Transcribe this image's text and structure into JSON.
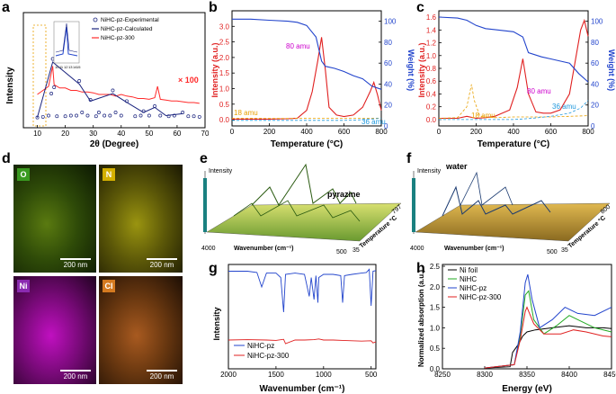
{
  "panel_labels": {
    "a": "a",
    "b": "b",
    "c": "c",
    "d": "d",
    "e": "e",
    "f": "f",
    "g": "g",
    "h": "h"
  },
  "colors": {
    "experimental": "#ff2a2a",
    "calculated": "#1a237e",
    "nihc_pz": "#2244cc",
    "nihc_pz_300": "#e02020",
    "intensity_axis": "#e02020",
    "weight_axis": "#2244cc",
    "amu80": "#cc00cc",
    "amu18": "#e8a000",
    "amu36": "#2299dd",
    "ni_foil": "#000000",
    "nihc": "#22aa22"
  },
  "panel_a": {
    "xlabel": "2θ (Degree)",
    "ylabel": "Intensity",
    "legend": [
      "NiHC-pz-Experimental",
      "NiHC-pz-Calculated",
      "NiHC-pz-300"
    ],
    "annotation": "× 100",
    "inset_ticks": [
      "10",
      "11",
      "12",
      "13",
      "14",
      "15"
    ]
  },
  "panel_b": {
    "xlabel": "Temperature (°C)",
    "ylabel_left": "Intensity (a.u.)",
    "ylabel_right": "Weight (%)",
    "amu80": "80 amu",
    "amu18": "18 amu",
    "amu36": "36 amu"
  },
  "panel_c": {
    "xlabel": "Temperature (°C)",
    "ylabel_left": "Intensity (a.u.)",
    "ylabel_right": "Weight (%)",
    "amu80": "80 amu",
    "amu18": "18 amu",
    "amu36": "36 amu"
  },
  "panel_d": {
    "maps": [
      {
        "element": "O",
        "scale": "200 nm"
      },
      {
        "element": "N",
        "scale": "200 nm"
      },
      {
        "element": "Ni",
        "scale": "200 nm"
      },
      {
        "element": "Cl",
        "scale": "200 nm"
      }
    ]
  },
  "panel_e": {
    "zlabel": "Intensity",
    "annotation": "pyrazine",
    "xlabel": "Wavenumber (cm⁻¹)",
    "x_left": "4000",
    "x_right": "500",
    "ylabel": "Temperature °C",
    "y_start": "35",
    "y_end": "797"
  },
  "panel_f": {
    "zlabel": "Intensity",
    "annotation": "water",
    "xlabel": "Wavenumber (cm⁻¹)",
    "x_left": "4000",
    "x_right": "500",
    "ylabel": "Temperature °C",
    "y_start": "35",
    "y_end": "800"
  },
  "panel_g": {
    "xlabel": "Wavenumber (cm⁻¹)",
    "ylabel": "Intensity",
    "legend": [
      "NiHC-pz",
      "NiHC-pz-300"
    ]
  },
  "panel_h": {
    "xlabel": "Energy (eV)",
    "ylabel": "Normalized absorption (a.u.)",
    "legend": [
      "Ni foil",
      "NiHC",
      "NiHC-pz",
      "NiHC-pz-300"
    ]
  },
  "chart_data": [
    {
      "type": "line",
      "panel": "a",
      "xlabel": "2θ (Degree)",
      "ylabel": "Intensity",
      "xlim": [
        5,
        70
      ],
      "xticks": [
        10,
        20,
        30,
        40,
        50,
        60,
        70
      ],
      "series": [
        {
          "name": "NiHC-pz-Experimental",
          "x": [
            10,
            12,
            14,
            15,
            15.5,
            16,
            17,
            20,
            22,
            24,
            25,
            26,
            28,
            29,
            31,
            32,
            34,
            36,
            37,
            38,
            40,
            42,
            45,
            47,
            48,
            50,
            52,
            54,
            57,
            59,
            62,
            64,
            66,
            68
          ],
          "y": [
            0.02,
            0.03,
            0.05,
            0.4,
            0.95,
            0.5,
            0.04,
            0.04,
            0.05,
            0.05,
            0.6,
            0.1,
            0.05,
            0.3,
            0.04,
            0.1,
            0.05,
            0.05,
            0.45,
            0.1,
            0.05,
            0.28,
            0.04,
            0.05,
            0.12,
            0.05,
            0.2,
            0.05,
            0.04,
            0.05,
            0.1,
            0.04,
            0.04,
            0.03
          ]
        },
        {
          "name": "NiHC-pz-Calculated",
          "x": [
            10,
            15.5,
            25,
            29,
            37,
            42,
            48,
            52,
            56,
            62
          ],
          "y": [
            0.02,
            0.9,
            0.55,
            0.28,
            0.4,
            0.26,
            0.1,
            0.18,
            0.05,
            0.08
          ]
        },
        {
          "name": "NiHC-pz-300",
          "x": [
            10,
            12,
            14,
            15.5,
            16,
            18,
            20,
            22,
            24,
            26,
            28,
            30,
            32,
            34,
            36,
            38,
            40,
            42,
            44,
            46,
            48,
            50,
            52,
            53,
            54,
            56,
            58,
            60,
            62,
            64,
            66,
            68
          ],
          "y": [
            0.5,
            0.55,
            0.6,
            0.85,
            0.62,
            0.58,
            0.58,
            0.55,
            0.55,
            0.53,
            0.53,
            0.52,
            0.5,
            0.5,
            0.5,
            0.48,
            0.5,
            0.48,
            0.47,
            0.45,
            0.45,
            0.44,
            0.46,
            0.6,
            0.44,
            0.43,
            0.42,
            0.42,
            0.41,
            0.4,
            0.4,
            0.39
          ]
        }
      ]
    },
    {
      "type": "line",
      "panel": "b",
      "xlabel": "Temperature (°C)",
      "ylabel": "Intensity (a.u.)",
      "y2label": "Weight (%)",
      "xlim": [
        0,
        800
      ],
      "ylim": [
        -0.2,
        3.5
      ],
      "y2lim": [
        0,
        110
      ],
      "xticks": [
        0,
        200,
        400,
        600,
        800
      ],
      "yticks": [
        0.0,
        0.5,
        1.0,
        1.5,
        2.0,
        2.5,
        3.0
      ],
      "y2ticks": [
        0,
        20,
        40,
        60,
        80,
        100
      ],
      "series": [
        {
          "name": "80 amu",
          "x": [
            0,
            100,
            200,
            300,
            350,
            400,
            430,
            460,
            480,
            500,
            520,
            560,
            600,
            650,
            700,
            740,
            760,
            780,
            800
          ],
          "y": [
            0.02,
            0.02,
            0.02,
            0.03,
            0.05,
            0.3,
            0.9,
            1.9,
            2.65,
            1.6,
            0.4,
            0.15,
            0.1,
            0.15,
            0.4,
            0.9,
            1.2,
            0.8,
            0.3
          ]
        },
        {
          "name": "18 amu",
          "x": [
            0,
            100,
            200,
            300,
            400,
            500,
            600,
            700,
            800
          ],
          "y": [
            0.05,
            0.05,
            0.04,
            0.04,
            0.05,
            0.05,
            0.05,
            0.05,
            0.05
          ]
        },
        {
          "name": "36 amu",
          "x": [
            0,
            100,
            200,
            300,
            400,
            500,
            600,
            700,
            800
          ],
          "y": [
            -0.02,
            -0.02,
            -0.02,
            -0.02,
            -0.02,
            -0.02,
            -0.02,
            0.0,
            0.05
          ]
        },
        {
          "name": "Weight",
          "x": [
            0,
            100,
            200,
            300,
            350,
            400,
            450,
            480,
            500,
            550,
            600,
            650,
            700,
            750,
            800
          ],
          "y": [
            102,
            102,
            101,
            100,
            99,
            96,
            85,
            62,
            57,
            55,
            52,
            48,
            45,
            38,
            35
          ]
        }
      ]
    },
    {
      "type": "line",
      "panel": "c",
      "xlabel": "Temperature (°C)",
      "ylabel": "Intensity (a.u.)",
      "y2label": "Weight (%)",
      "xlim": [
        0,
        800
      ],
      "ylim": [
        -0.1,
        1.7
      ],
      "y2lim": [
        0,
        110
      ],
      "xticks": [
        0,
        200,
        400,
        600,
        800
      ],
      "yticks": [
        0.0,
        0.2,
        0.4,
        0.6,
        0.8,
        1.0,
        1.2,
        1.4,
        1.6
      ],
      "y2ticks": [
        0,
        20,
        40,
        60,
        80,
        100
      ],
      "series": [
        {
          "name": "80 amu",
          "x": [
            0,
            100,
            150,
            200,
            250,
            300,
            380,
            420,
            450,
            480,
            520,
            560,
            600,
            650,
            700,
            730,
            760,
            780,
            800
          ],
          "y": [
            0.02,
            0.02,
            0.05,
            0.02,
            0.03,
            0.05,
            0.15,
            0.5,
            0.95,
            0.4,
            0.12,
            0.1,
            0.1,
            0.15,
            0.4,
            0.9,
            1.4,
            1.55,
            1.3
          ]
        },
        {
          "name": "18 amu",
          "x": [
            0,
            100,
            150,
            175,
            190,
            220,
            300,
            400,
            500,
            600,
            700,
            800
          ],
          "y": [
            0.02,
            0.03,
            0.2,
            0.55,
            0.3,
            0.05,
            0.03,
            0.04,
            0.04,
            0.04,
            0.05,
            0.06
          ]
        },
        {
          "name": "36 amu",
          "x": [
            0,
            200,
            400,
            500,
            600,
            700,
            760,
            800
          ],
          "y": [
            0.0,
            0.0,
            0.0,
            0.02,
            0.05,
            0.1,
            0.18,
            0.3
          ]
        },
        {
          "name": "Weight",
          "x": [
            0,
            100,
            150,
            200,
            250,
            300,
            400,
            450,
            480,
            550,
            600,
            650,
            700,
            750,
            800
          ],
          "y": [
            104,
            103,
            101,
            96,
            93,
            92,
            90,
            85,
            70,
            66,
            64,
            62,
            60,
            50,
            42
          ]
        }
      ]
    },
    {
      "type": "line",
      "panel": "g",
      "xlabel": "Wavenumber (cm⁻¹)",
      "ylabel": "Intensity",
      "xlim": [
        2000,
        450
      ],
      "xticks": [
        2000,
        1500,
        1000,
        500
      ],
      "series": [
        {
          "name": "NiHC-pz",
          "x": [
            2000,
            1800,
            1700,
            1650,
            1600,
            1500,
            1450,
            1420,
            1400,
            1300,
            1200,
            1150,
            1130,
            1100,
            1080,
            1060,
            1050,
            1000,
            900,
            820,
            800,
            780,
            700,
            600,
            550,
            520,
            500,
            480,
            450
          ],
          "y": [
            0.95,
            0.95,
            0.93,
            0.7,
            0.92,
            0.92,
            0.85,
            0.3,
            0.9,
            0.92,
            0.9,
            0.55,
            0.85,
            0.5,
            0.88,
            0.45,
            0.85,
            0.9,
            0.9,
            0.88,
            0.45,
            0.88,
            0.9,
            0.92,
            0.93,
            0.98,
            0.4,
            0.95,
            0.96
          ]
        },
        {
          "name": "NiHC-pz-300",
          "x": [
            2000,
            1800,
            1600,
            1500,
            1420,
            1400,
            1300,
            1200,
            1100,
            1050,
            1000,
            900,
            800,
            700,
            600,
            500,
            480,
            450
          ],
          "y": [
            0.1,
            0.11,
            0.1,
            0.09,
            0.12,
            0.0,
            0.1,
            0.1,
            0.11,
            0.13,
            0.1,
            0.1,
            0.09,
            0.08,
            0.07,
            0.08,
            0.02,
            0.05
          ]
        }
      ]
    },
    {
      "type": "line",
      "panel": "h",
      "xlabel": "Energy (eV)",
      "ylabel": "Normalized absorption (a.u.)",
      "xlim": [
        8250,
        8450
      ],
      "ylim": [
        0,
        2.5
      ],
      "xticks": [
        8250,
        8300,
        8350,
        8400,
        8450
      ],
      "yticks": [
        0.0,
        0.5,
        1.0,
        1.5,
        2.0,
        2.5
      ],
      "series": [
        {
          "name": "Ni foil",
          "x": [
            8300,
            8330,
            8333,
            8340,
            8345,
            8350,
            8360,
            8380,
            8400,
            8420,
            8440,
            8450
          ],
          "y": [
            0.02,
            0.05,
            0.4,
            0.6,
            0.8,
            0.9,
            0.95,
            1.0,
            1.05,
            1.0,
            1.0,
            0.98
          ]
        },
        {
          "name": "NiHC",
          "x": [
            8300,
            8335,
            8342,
            8348,
            8352,
            8358,
            8370,
            8385,
            8400,
            8410,
            8430,
            8450
          ],
          "y": [
            0.02,
            0.1,
            0.8,
            1.8,
            1.9,
            1.2,
            0.85,
            1.05,
            1.3,
            1.2,
            1.0,
            0.9
          ]
        },
        {
          "name": "NiHC-pz",
          "x": [
            8300,
            8335,
            8342,
            8348,
            8351,
            8356,
            8365,
            8380,
            8395,
            8410,
            8430,
            8450
          ],
          "y": [
            0.02,
            0.1,
            0.9,
            2.1,
            2.3,
            1.7,
            1.0,
            1.2,
            1.5,
            1.35,
            1.3,
            1.5
          ]
        },
        {
          "name": "NiHC-pz-300",
          "x": [
            8300,
            8335,
            8342,
            8348,
            8350,
            8358,
            8370,
            8390,
            8405,
            8420,
            8440,
            8450
          ],
          "y": [
            0.02,
            0.1,
            0.7,
            1.4,
            1.5,
            1.1,
            0.85,
            0.85,
            0.95,
            0.9,
            0.8,
            0.78
          ]
        }
      ]
    }
  ]
}
